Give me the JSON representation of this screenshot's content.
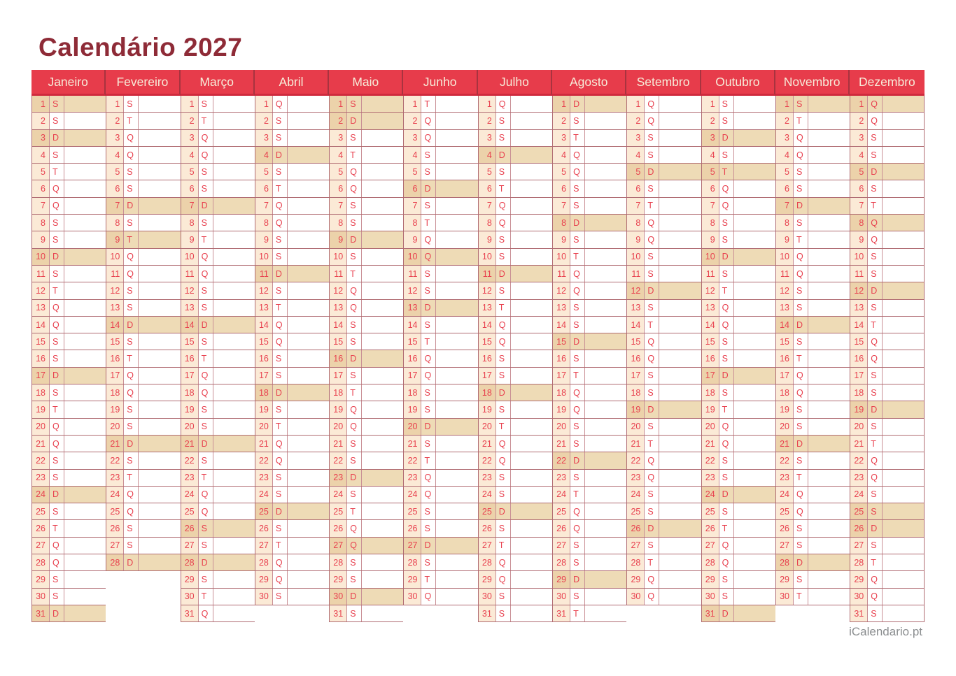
{
  "page": {
    "title": "Calendário 2027",
    "footer": "iCalendario.pt"
  },
  "colors": {
    "title_text": "#8e2b37",
    "header_bg": "#e73c4b",
    "header_text": "#f7ecd9",
    "header_divider": "#a8333f",
    "day_text": "#e8414f",
    "grid_border": "#b06b72",
    "inner_border": "#c98f95",
    "number_cell_bg": "#fbead6",
    "highlight_bg": "#eedbb6",
    "highlight_number_bg": "#ecd2aa",
    "footer_text": "#8b8e90"
  },
  "calendar": {
    "year": "2027",
    "weekday_letters_legend": [
      "S",
      "T",
      "Q",
      "Q",
      "S",
      "S",
      "D"
    ],
    "months": [
      {
        "name": "Janeiro",
        "letters": [
          "S",
          "S",
          "D",
          "S",
          "T",
          "Q",
          "Q",
          "S",
          "S",
          "D",
          "S",
          "T",
          "Q",
          "Q",
          "S",
          "S",
          "D",
          "S",
          "T",
          "Q",
          "Q",
          "S",
          "S",
          "D",
          "S",
          "T",
          "Q",
          "Q",
          "S",
          "S",
          "D"
        ],
        "highlights": [
          1,
          3,
          10,
          17,
          24,
          31
        ]
      },
      {
        "name": "Fevereiro",
        "letters": [
          "S",
          "T",
          "Q",
          "Q",
          "S",
          "S",
          "D",
          "S",
          "T",
          "Q",
          "Q",
          "S",
          "S",
          "D",
          "S",
          "T",
          "Q",
          "Q",
          "S",
          "S",
          "D",
          "S",
          "T",
          "Q",
          "Q",
          "S",
          "S",
          "D"
        ],
        "highlights": [
          7,
          9,
          14,
          21,
          28
        ]
      },
      {
        "name": "Março",
        "letters": [
          "S",
          "T",
          "Q",
          "Q",
          "S",
          "S",
          "D",
          "S",
          "T",
          "Q",
          "Q",
          "S",
          "S",
          "D",
          "S",
          "T",
          "Q",
          "Q",
          "S",
          "S",
          "D",
          "S",
          "T",
          "Q",
          "Q",
          "S",
          "S",
          "D",
          "S",
          "T",
          "Q"
        ],
        "highlights": [
          7,
          14,
          21,
          26,
          28
        ]
      },
      {
        "name": "Abril",
        "letters": [
          "Q",
          "S",
          "S",
          "D",
          "S",
          "T",
          "Q",
          "Q",
          "S",
          "S",
          "D",
          "S",
          "T",
          "Q",
          "Q",
          "S",
          "S",
          "D",
          "S",
          "T",
          "Q",
          "Q",
          "S",
          "S",
          "D",
          "S",
          "T",
          "Q",
          "Q",
          "S"
        ],
        "highlights": [
          4,
          11,
          18,
          25
        ]
      },
      {
        "name": "Maio",
        "letters": [
          "S",
          "D",
          "S",
          "T",
          "Q",
          "Q",
          "S",
          "S",
          "D",
          "S",
          "T",
          "Q",
          "Q",
          "S",
          "S",
          "D",
          "S",
          "T",
          "Q",
          "Q",
          "S",
          "S",
          "D",
          "S",
          "T",
          "Q",
          "Q",
          "S",
          "S",
          "D",
          "S"
        ],
        "highlights": [
          1,
          2,
          9,
          16,
          23,
          27,
          30
        ]
      },
      {
        "name": "Junho",
        "letters": [
          "T",
          "Q",
          "Q",
          "S",
          "S",
          "D",
          "S",
          "T",
          "Q",
          "Q",
          "S",
          "S",
          "D",
          "S",
          "T",
          "Q",
          "Q",
          "S",
          "S",
          "D",
          "S",
          "T",
          "Q",
          "Q",
          "S",
          "S",
          "D",
          "S",
          "T",
          "Q"
        ],
        "highlights": [
          6,
          10,
          13,
          20,
          27
        ]
      },
      {
        "name": "Julho",
        "letters": [
          "Q",
          "S",
          "S",
          "D",
          "S",
          "T",
          "Q",
          "Q",
          "S",
          "S",
          "D",
          "S",
          "T",
          "Q",
          "Q",
          "S",
          "S",
          "D",
          "S",
          "T",
          "Q",
          "Q",
          "S",
          "S",
          "D",
          "S",
          "T",
          "Q",
          "Q",
          "S",
          "S"
        ],
        "highlights": [
          4,
          11,
          18,
          25
        ]
      },
      {
        "name": "Agosto",
        "letters": [
          "D",
          "S",
          "T",
          "Q",
          "Q",
          "S",
          "S",
          "D",
          "S",
          "T",
          "Q",
          "Q",
          "S",
          "S",
          "D",
          "S",
          "T",
          "Q",
          "Q",
          "S",
          "S",
          "D",
          "S",
          "T",
          "Q",
          "Q",
          "S",
          "S",
          "D",
          "S",
          "T"
        ],
        "highlights": [
          1,
          8,
          15,
          22,
          29
        ]
      },
      {
        "name": "Setembro",
        "letters": [
          "Q",
          "Q",
          "S",
          "S",
          "D",
          "S",
          "T",
          "Q",
          "Q",
          "S",
          "S",
          "D",
          "S",
          "T",
          "Q",
          "Q",
          "S",
          "S",
          "D",
          "S",
          "T",
          "Q",
          "Q",
          "S",
          "S",
          "D",
          "S",
          "T",
          "Q",
          "Q"
        ],
        "highlights": [
          5,
          12,
          19,
          26
        ]
      },
      {
        "name": "Outubro",
        "letters": [
          "S",
          "S",
          "D",
          "S",
          "T",
          "Q",
          "Q",
          "S",
          "S",
          "D",
          "S",
          "T",
          "Q",
          "Q",
          "S",
          "S",
          "D",
          "S",
          "T",
          "Q",
          "Q",
          "S",
          "S",
          "D",
          "S",
          "T",
          "Q",
          "Q",
          "S",
          "S",
          "D"
        ],
        "highlights": [
          3,
          5,
          10,
          17,
          24,
          31
        ]
      },
      {
        "name": "Novembro",
        "letters": [
          "S",
          "T",
          "Q",
          "Q",
          "S",
          "S",
          "D",
          "S",
          "T",
          "Q",
          "Q",
          "S",
          "S",
          "D",
          "S",
          "T",
          "Q",
          "Q",
          "S",
          "S",
          "D",
          "S",
          "T",
          "Q",
          "Q",
          "S",
          "S",
          "D",
          "S",
          "T"
        ],
        "highlights": [
          1,
          7,
          14,
          21,
          28
        ]
      },
      {
        "name": "Dezembro",
        "letters": [
          "Q",
          "Q",
          "S",
          "S",
          "D",
          "S",
          "T",
          "Q",
          "Q",
          "S",
          "S",
          "D",
          "S",
          "T",
          "Q",
          "Q",
          "S",
          "S",
          "D",
          "S",
          "T",
          "Q",
          "Q",
          "S",
          "S",
          "D",
          "S",
          "T",
          "Q",
          "Q",
          "S"
        ],
        "highlights": [
          1,
          5,
          8,
          12,
          19,
          25,
          26
        ]
      }
    ]
  }
}
